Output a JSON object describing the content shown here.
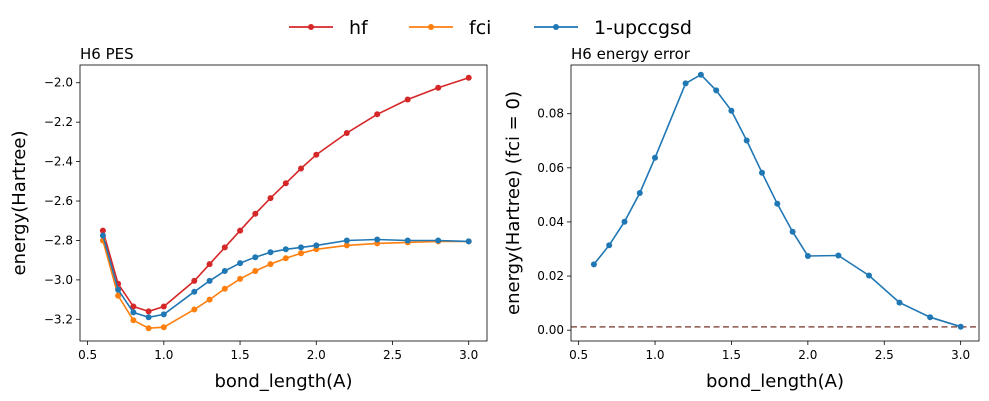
{
  "legend": {
    "placement": "top-center",
    "entries": [
      {
        "label": "hf",
        "color": "#d62728"
      },
      {
        "label": "fci",
        "color": "#ff7f0e"
      },
      {
        "label": "1-upccgsd",
        "color": "#1f77b4"
      }
    ]
  },
  "chart_data": [
    {
      "type": "line",
      "title": "H6 PES",
      "xlabel": "bond_length(A)",
      "ylabel": "energy(Hartree)",
      "xlim": [
        0.45,
        3.12
      ],
      "ylim": [
        -3.31,
        -1.91
      ],
      "xticks": [
        "0.5",
        "1.0",
        "1.5",
        "2.0",
        "2.5",
        "3.0"
      ],
      "yticks": [
        "−3.2",
        "−3.0",
        "−2.8",
        "−2.6",
        "−2.4",
        "−2.2",
        "−2.0"
      ],
      "grid": false,
      "series": [
        {
          "name": "hf",
          "color": "#d62728",
          "x": [
            0.6,
            0.7,
            0.8,
            0.9,
            1.0,
            1.2,
            1.3,
            1.4,
            1.5,
            1.6,
            1.7,
            1.8,
            1.9,
            2.0,
            2.2,
            2.4,
            2.6,
            2.8,
            3.0
          ],
          "y": [
            -2.75,
            -3.02,
            -3.135,
            -3.16,
            -3.135,
            -3.005,
            -2.92,
            -2.835,
            -2.75,
            -2.665,
            -2.585,
            -2.51,
            -2.435,
            -2.365,
            -2.255,
            -2.16,
            -2.085,
            -2.025,
            -1.975
          ]
        },
        {
          "name": "fci",
          "color": "#ff7f0e",
          "x": [
            0.6,
            0.7,
            0.8,
            0.9,
            1.0,
            1.2,
            1.3,
            1.4,
            1.5,
            1.6,
            1.7,
            1.8,
            1.9,
            2.0,
            2.2,
            2.4,
            2.6,
            2.8,
            3.0
          ],
          "y": [
            -2.8,
            -3.08,
            -3.205,
            -3.245,
            -3.24,
            -3.15,
            -3.1,
            -3.045,
            -2.995,
            -2.955,
            -2.92,
            -2.89,
            -2.865,
            -2.845,
            -2.825,
            -2.815,
            -2.81,
            -2.805,
            -2.805
          ]
        },
        {
          "name": "1-upccgsd",
          "color": "#1f77b4",
          "x": [
            0.6,
            0.7,
            0.8,
            0.9,
            1.0,
            1.2,
            1.3,
            1.4,
            1.5,
            1.6,
            1.7,
            1.8,
            1.9,
            2.0,
            2.2,
            2.4,
            2.6,
            2.8,
            3.0
          ],
          "y": [
            -2.775,
            -3.05,
            -3.165,
            -3.19,
            -3.175,
            -3.06,
            -3.005,
            -2.955,
            -2.915,
            -2.885,
            -2.86,
            -2.845,
            -2.835,
            -2.825,
            -2.8,
            -2.795,
            -2.8,
            -2.8,
            -2.805
          ]
        }
      ]
    },
    {
      "type": "line",
      "title": "H6 energy error",
      "xlabel": "bond_length(A)",
      "ylabel": "energy(Hartree) (fci = 0)",
      "xlim": [
        0.45,
        3.12
      ],
      "ylim": [
        -0.004,
        0.098
      ],
      "xticks": [
        "0.5",
        "1.0",
        "1.5",
        "2.0",
        "2.5",
        "3.0"
      ],
      "yticks": [
        "0.00",
        "0.02",
        "0.04",
        "0.06",
        "0.08"
      ],
      "grid": false,
      "reference_line": {
        "y": 0.0012,
        "style": "dashed",
        "color": "#8c564b"
      },
      "series": [
        {
          "name": "1-upccgsd",
          "color": "#1f77b4",
          "x": [
            0.6,
            0.7,
            0.8,
            0.9,
            1.0,
            1.2,
            1.3,
            1.4,
            1.5,
            1.6,
            1.7,
            1.8,
            1.9,
            2.0,
            2.2,
            2.4,
            2.6,
            2.8,
            3.0
          ],
          "y": [
            0.0243,
            0.0314,
            0.0401,
            0.0507,
            0.0637,
            0.0912,
            0.0944,
            0.0886,
            0.0811,
            0.0701,
            0.0582,
            0.0467,
            0.0364,
            0.0274,
            0.0276,
            0.0202,
            0.0102,
            0.0048,
            0.0013
          ]
        }
      ]
    }
  ]
}
